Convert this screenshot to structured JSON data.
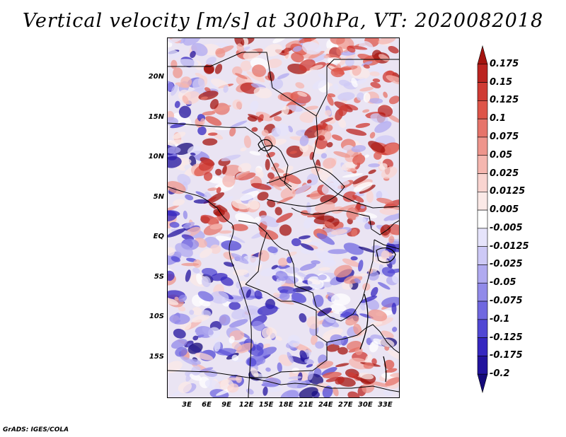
{
  "title": "Vertical velocity [m/s] at 300hPa, VT: 2020082018",
  "credit": "GrADS: IGES/COLA",
  "latitude_ticks": [
    "20N",
    "15N",
    "10N",
    "5N",
    "EQ",
    "5S",
    "10S",
    "15S"
  ],
  "longitude_ticks": [
    "3E",
    "6E",
    "9E",
    "12E",
    "15E",
    "18E",
    "21E",
    "24E",
    "27E",
    "30E",
    "33E"
  ],
  "colorbar": {
    "levels": [
      "0.175",
      "0.15",
      "0.125",
      "0.1",
      "0.075",
      "0.05",
      "0.025",
      "0.0125",
      "0.005",
      "-0.005",
      "-0.0125",
      "-0.025",
      "-0.05",
      "-0.075",
      "-0.1",
      "-0.125",
      "-0.175",
      "-0.2"
    ],
    "colors": [
      "#a4140f",
      "#bb2420",
      "#cf3a33",
      "#de5549",
      "#e6746a",
      "#ee958c",
      "#f5b6af",
      "#f9d4d0",
      "#fbe9e7",
      "#ffffff",
      "#e6e4fb",
      "#cdc9f6",
      "#b0aaf0",
      "#918ae9",
      "#7068e0",
      "#5047d4",
      "#3527c0",
      "#22139d",
      "#150a7a"
    ]
  },
  "chart_data": {
    "type": "heatmap",
    "variable": "Vertical velocity",
    "units": "m/s",
    "level": "300hPa",
    "valid_time": "2020082018",
    "lon_range": [
      0,
      35
    ],
    "lat_range": [
      -20,
      25
    ],
    "contour_levels": [
      -0.2,
      -0.175,
      -0.125,
      -0.1,
      -0.075,
      -0.05,
      -0.025,
      -0.0125,
      -0.005,
      0.005,
      0.0125,
      0.025,
      0.05,
      0.075,
      0.1,
      0.125,
      0.15,
      0.175
    ]
  }
}
